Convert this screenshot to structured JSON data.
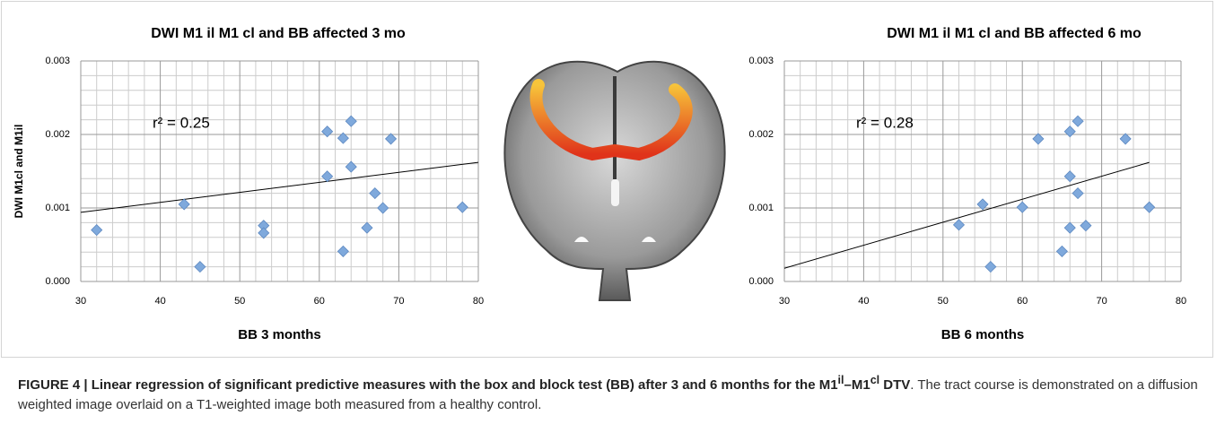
{
  "chart_data": [
    {
      "type": "scatter",
      "title": "DWI M1 il M1 cl and BB affected 3 mo",
      "xlabel": "BB 3 months",
      "ylabel": "DWI M1cl and M1il",
      "annotation": "r² = 0.25",
      "color": "#7fa9dc",
      "x": [
        32,
        43,
        45,
        53,
        53,
        61,
        61,
        63,
        63,
        64,
        64,
        66,
        67,
        68,
        69,
        78
      ],
      "values": [
        0.0007,
        0.00105,
        0.0002,
        0.00076,
        0.00066,
        0.00204,
        0.00143,
        0.00195,
        0.00041,
        0.00218,
        0.00156,
        0.00073,
        0.0012,
        0.001,
        0.00194,
        0.00101
      ],
      "trendline": {
        "x": [
          30,
          80
        ],
        "y": [
          0.00094,
          0.00162
        ]
      },
      "xlim": [
        30,
        80
      ],
      "ylim": [
        0,
        0.003
      ],
      "xticks": [
        30,
        40,
        50,
        60,
        70,
        80
      ],
      "yticks": [
        {
          "value": 0,
          "label": "0.000"
        },
        {
          "value": 0.001,
          "label": "0.001"
        },
        {
          "value": 0.002,
          "label": "0.002"
        },
        {
          "value": 0.003,
          "label": "0.003"
        }
      ],
      "xgrid": [
        32,
        34,
        36,
        38,
        42,
        44,
        46,
        48,
        52,
        54,
        56,
        58,
        62,
        64,
        66,
        68,
        72,
        74,
        76,
        78
      ],
      "ygrid": [
        0.0002,
        0.0004,
        0.0006,
        0.0008,
        0.0012,
        0.0014,
        0.0016,
        0.0018,
        0.0022,
        0.0024,
        0.0026,
        0.0028
      ]
    },
    {
      "type": "scatter",
      "title": "DWI M1 il M1 cl and BB affected 6 mo",
      "xlabel": "BB 6 months",
      "annotation": "r² = 0.28",
      "color": "#7fa9dc",
      "x": [
        52,
        55,
        56,
        60,
        62,
        65,
        66,
        66,
        66,
        67,
        67,
        68,
        73,
        76
      ],
      "values": [
        0.00077,
        0.00105,
        0.0002,
        0.00101,
        0.00194,
        0.00041,
        0.00204,
        0.00143,
        0.00073,
        0.00218,
        0.0012,
        0.00076,
        0.00194,
        0.00101
      ],
      "trendline": {
        "x": [
          30,
          76
        ],
        "y": [
          0.00018,
          0.00162
        ]
      },
      "xlim": [
        30,
        80
      ],
      "ylim": [
        0,
        0.003
      ],
      "xticks": [
        30,
        40,
        50,
        60,
        70,
        80
      ],
      "yticks": [
        {
          "value": 0,
          "label": "0.000"
        },
        {
          "value": 0.001,
          "label": "0.001"
        },
        {
          "value": 0.002,
          "label": "0.002"
        },
        {
          "value": 0.003,
          "label": "0.003"
        }
      ],
      "xgrid": [
        32,
        34,
        36,
        38,
        42,
        44,
        46,
        48,
        52,
        54,
        56,
        58,
        62,
        64,
        66,
        68,
        72,
        74,
        76,
        78
      ],
      "ygrid": [
        0.0002,
        0.0004,
        0.0006,
        0.0008,
        0.0012,
        0.0014,
        0.0016,
        0.0018,
        0.0022,
        0.0024,
        0.0026,
        0.0028
      ]
    }
  ],
  "caption": [
    "FIGURE 4 | Linear regression of significant predictive measures with the box and block test (BB) after 3 and 6 months for the M1",
    "il",
    "–M1",
    "cl",
    " DTV",
    ". The tract course is demonstrated on a diffusion weighted image overlaid on a T1-weighted image both measured from a healthy control."
  ]
}
